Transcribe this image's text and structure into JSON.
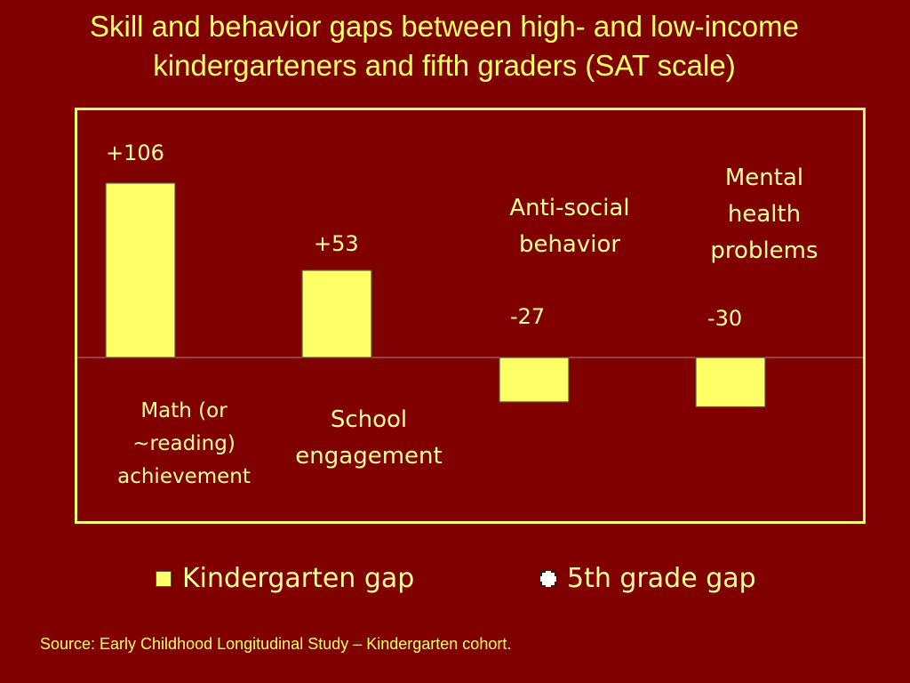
{
  "title_line1": "Skill and behavior gaps between high- and low-income",
  "title_line2": "kindergarteners and fifth graders (SAT scale)",
  "source": "Source: Early Childhood Longitudinal Study – Kindergarten cohort.",
  "colors": {
    "background": "#800000",
    "bar_fill": "#ffff66",
    "text": "#ffff66"
  },
  "chart_data": {
    "type": "bar",
    "categories": [
      [
        "Math (or",
        "~reading)",
        "achievement"
      ],
      [
        "School",
        "engagement"
      ],
      [
        "Anti-social",
        "behavior"
      ],
      [
        "Mental",
        "health",
        "problems"
      ]
    ],
    "series": [
      {
        "name": "Kindergarten gap",
        "values": [
          106,
          53,
          -27,
          -30
        ],
        "value_labels": [
          "+106",
          "+53",
          "-27",
          "-30"
        ]
      },
      {
        "name": "5th grade gap",
        "values": [
          null,
          null,
          null,
          null
        ]
      }
    ],
    "ylim": [
      -100,
      150
    ],
    "grid": false,
    "legend_position": "bottom"
  }
}
